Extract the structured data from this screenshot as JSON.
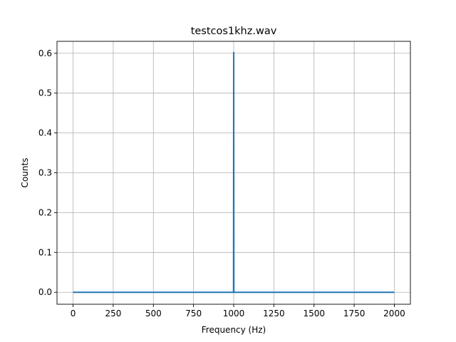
{
  "chart_data": {
    "type": "line",
    "title": "testcos1khz.wav",
    "xlabel": "Frequency (Hz)",
    "ylabel": "Counts",
    "xlim": [
      -100,
      2100
    ],
    "ylim": [
      -0.03,
      0.63
    ],
    "xticks": [
      0,
      250,
      500,
      750,
      1000,
      1250,
      1500,
      1750,
      2000
    ],
    "xtick_labels": [
      "0",
      "250",
      "500",
      "750",
      "1000",
      "1250",
      "1500",
      "1750",
      "2000"
    ],
    "yticks": [
      0.0,
      0.1,
      0.2,
      0.3,
      0.4,
      0.5,
      0.6
    ],
    "ytick_labels": [
      "0.0",
      "0.1",
      "0.2",
      "0.3",
      "0.4",
      "0.5",
      "0.6"
    ],
    "grid": true,
    "series": [
      {
        "color": "#1f77b4",
        "x": [
          0,
          999,
          1000,
          1001,
          2000
        ],
        "y": [
          0.0,
          0.0,
          0.602,
          0.0,
          0.0
        ]
      }
    ]
  }
}
